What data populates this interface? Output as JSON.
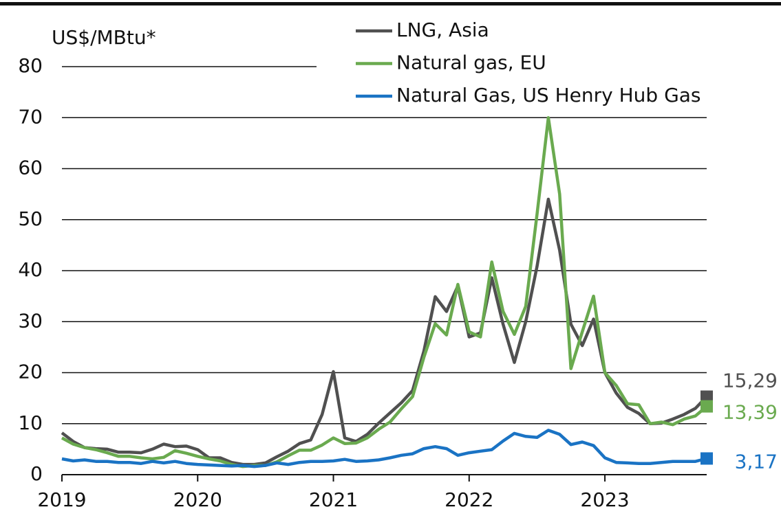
{
  "chart_data": {
    "type": "line",
    "y_label": "US$/MBtu*",
    "x": [
      "2019-01",
      "2019-02",
      "2019-03",
      "2019-04",
      "2019-05",
      "2019-06",
      "2019-07",
      "2019-08",
      "2019-09",
      "2019-10",
      "2019-11",
      "2019-12",
      "2020-01",
      "2020-02",
      "2020-03",
      "2020-04",
      "2020-05",
      "2020-06",
      "2020-07",
      "2020-08",
      "2020-09",
      "2020-10",
      "2020-11",
      "2020-12",
      "2021-01",
      "2021-02",
      "2021-03",
      "2021-04",
      "2021-05",
      "2021-06",
      "2021-07",
      "2021-08",
      "2021-09",
      "2021-10",
      "2021-11",
      "2021-12",
      "2022-01",
      "2022-02",
      "2022-03",
      "2022-04",
      "2022-05",
      "2022-06",
      "2022-07",
      "2022-08",
      "2022-09",
      "2022-10",
      "2022-11",
      "2022-12",
      "2023-01",
      "2023-02",
      "2023-03",
      "2023-04",
      "2023-05",
      "2023-06",
      "2023-07",
      "2023-08",
      "2023-09",
      "2023-10"
    ],
    "series": [
      {
        "name": "LNG, Asia",
        "color": "#505050",
        "last_label": "15,29",
        "values": [
          8.2,
          6.5,
          5.3,
          5.1,
          5.0,
          4.4,
          4.4,
          4.3,
          5.0,
          6.0,
          5.5,
          5.6,
          4.9,
          3.3,
          3.3,
          2.4,
          2.0,
          2.0,
          2.3,
          3.5,
          4.6,
          6.1,
          6.8,
          11.8,
          20.2,
          7.2,
          6.5,
          7.9,
          10.1,
          12.1,
          14.1,
          16.5,
          24.2,
          34.9,
          32.0,
          37.0,
          27.0,
          27.8,
          38.6,
          29.5,
          22.0,
          30.0,
          40.8,
          54.0,
          44.0,
          29.5,
          25.3,
          30.5,
          20.0,
          16.0,
          13.2,
          12.0,
          10.0,
          10.1,
          10.9,
          11.8,
          13.0,
          15.29
        ]
      },
      {
        "name": "Natural gas, EU",
        "color": "#6aaa4f",
        "last_label": "13,39",
        "values": [
          7.2,
          6.0,
          5.3,
          4.9,
          4.3,
          3.6,
          3.6,
          3.3,
          3.1,
          3.4,
          4.7,
          4.2,
          3.6,
          3.1,
          2.7,
          2.0,
          1.6,
          1.8,
          1.8,
          2.5,
          3.7,
          4.8,
          4.8,
          5.8,
          7.2,
          6.1,
          6.2,
          7.2,
          8.9,
          10.3,
          12.9,
          15.3,
          23.0,
          29.6,
          27.4,
          37.3,
          28.0,
          27.0,
          41.7,
          32.0,
          27.5,
          33.0,
          51.0,
          70.0,
          55.0,
          20.8,
          28.0,
          35.0,
          20.0,
          17.5,
          13.9,
          13.7,
          10.0,
          10.3,
          9.8,
          10.9,
          11.5,
          13.39
        ]
      },
      {
        "name": "Natural Gas, US Henry Hub Gas",
        "color": "#1a73c4",
        "last_label": "3,17",
        "values": [
          3.1,
          2.7,
          2.9,
          2.6,
          2.6,
          2.4,
          2.4,
          2.2,
          2.6,
          2.3,
          2.6,
          2.2,
          2.0,
          1.9,
          1.8,
          1.7,
          1.8,
          1.6,
          1.8,
          2.3,
          2.0,
          2.4,
          2.6,
          2.6,
          2.7,
          3.0,
          2.6,
          2.7,
          2.9,
          3.3,
          3.8,
          4.1,
          5.1,
          5.5,
          5.1,
          3.8,
          4.3,
          4.6,
          4.9,
          6.6,
          8.1,
          7.5,
          7.3,
          8.7,
          7.9,
          5.9,
          6.4,
          5.7,
          3.3,
          2.4,
          2.3,
          2.2,
          2.2,
          2.4,
          2.6,
          2.6,
          2.6,
          3.17
        ]
      }
    ],
    "xlim": [
      "2019-01",
      "2023-10"
    ],
    "xticks": [
      2019,
      2020,
      2021,
      2022,
      2023
    ],
    "ylim": [
      0,
      80
    ],
    "yticks": [
      0,
      10,
      20,
      30,
      40,
      50,
      60,
      70,
      80
    ],
    "grid": true
  }
}
